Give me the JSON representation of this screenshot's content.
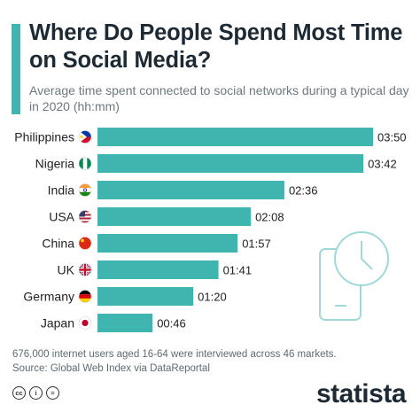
{
  "header": {
    "title": "Where Do People Spend Most Time on Social Media?",
    "subtitle": "Average time spent connected to social networks during a typical day in 2020 (hh:mm)"
  },
  "chart_data": {
    "type": "bar",
    "orientation": "horizontal",
    "categories": [
      "Philippines",
      "Nigeria",
      "India",
      "USA",
      "China",
      "UK",
      "Germany",
      "Japan"
    ],
    "labels": [
      "03:50",
      "03:42",
      "02:36",
      "02:08",
      "01:57",
      "01:41",
      "01:20",
      "00:46"
    ],
    "values": [
      230,
      222,
      156,
      128,
      117,
      101,
      80,
      46
    ],
    "value_unit": "minutes",
    "title": "Where Do People Spend Most Time on Social Media?",
    "subtitle": "Average time spent connected to social networks during a typical day in 2020 (hh:mm)",
    "bar_color": "#3fb5b0",
    "grid": false,
    "legend": "none"
  },
  "flags": [
    "philippines-flag-icon",
    "nigeria-flag-icon",
    "india-flag-icon",
    "usa-flag-icon",
    "china-flag-icon",
    "uk-flag-icon",
    "germany-flag-icon",
    "japan-flag-icon"
  ],
  "decoration": "phone-clock-icon",
  "footer": {
    "note": "676,000 internet users aged 16-64 were interviewed across 46 markets.",
    "source": "Source: Global Web Index via DataReportal",
    "license_icons": [
      "cc",
      "i",
      "="
    ],
    "logo": "statista"
  },
  "colors": {
    "accent": "#3fb5b0",
    "text": "#1e2a33",
    "muted": "#6d7880"
  }
}
